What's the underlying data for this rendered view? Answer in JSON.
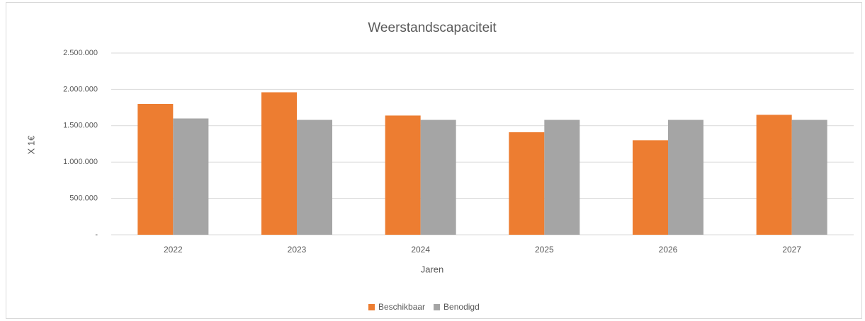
{
  "chart_data": {
    "type": "bar",
    "title": "Weerstandscapaciteit",
    "x_label": "Jaren",
    "y_label": "X 1€",
    "categories": [
      "2022",
      "2023",
      "2024",
      "2025",
      "2026",
      "2027"
    ],
    "series": [
      {
        "name": "Beschikbaar",
        "color": "#ed7d31",
        "values": [
          1800000,
          1960000,
          1640000,
          1410000,
          1300000,
          1650000
        ]
      },
      {
        "name": "Benodigd",
        "color": "#a5a5a5",
        "values": [
          1600000,
          1580000,
          1580000,
          1580000,
          1580000,
          1580000
        ]
      }
    ],
    "ylim": [
      0,
      2500000
    ],
    "yticks": [
      {
        "value": 0,
        "label": "-"
      },
      {
        "value": 500000,
        "label": "500.000"
      },
      {
        "value": 1000000,
        "label": "1.000.000"
      },
      {
        "value": 1500000,
        "label": "1.500.000"
      },
      {
        "value": 2000000,
        "label": "2.000.000"
      },
      {
        "value": 2500000,
        "label": "2.500.000"
      }
    ],
    "grid": true,
    "legend": "bottom"
  }
}
